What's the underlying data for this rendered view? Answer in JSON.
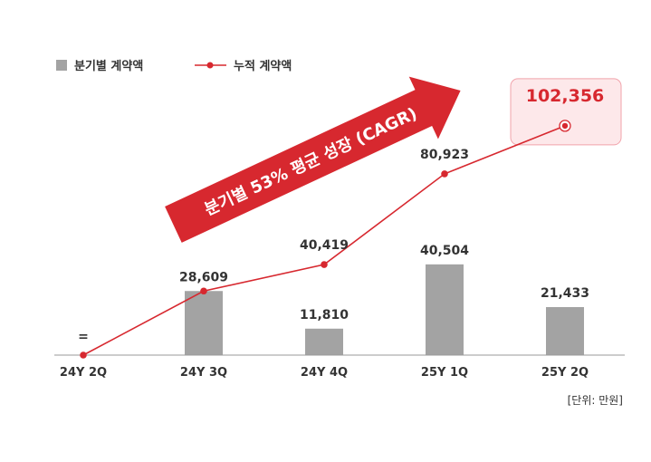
{
  "chart_data": {
    "type": "bar",
    "categories": [
      "24Y 2Q",
      "24Y 3Q",
      "24Y 4Q",
      "25Y 1Q",
      "25Y 2Q"
    ],
    "series": [
      {
        "name": "분기별 계약액",
        "type": "bar",
        "values": [
          0,
          28609,
          11810,
          40504,
          21433
        ],
        "labels": [
          "=",
          "28,609",
          "11,810",
          "40,504",
          "21,433"
        ]
      },
      {
        "name": "누적 계약액",
        "type": "line",
        "values": [
          0,
          28609,
          40419,
          80923,
          102356
        ],
        "labels": [
          "",
          "",
          "40,419",
          "80,923",
          "102,356"
        ]
      }
    ],
    "highlight": {
      "index": 4,
      "series": 1
    },
    "arrow_text": "분기별 53% 평균 성장 (CAGR)",
    "unit_note": "[단위: 만원]",
    "ylim": [
      0,
      110000
    ],
    "grid": false,
    "legend_position": "top-left",
    "colors": {
      "bar": "#a3a3a3",
      "line": "#d7282f",
      "arrow": "#d7282f",
      "highlight_fill": "#fde8ea",
      "highlight_border": "#f1a3ab",
      "axis": "#9a9a9a"
    }
  }
}
